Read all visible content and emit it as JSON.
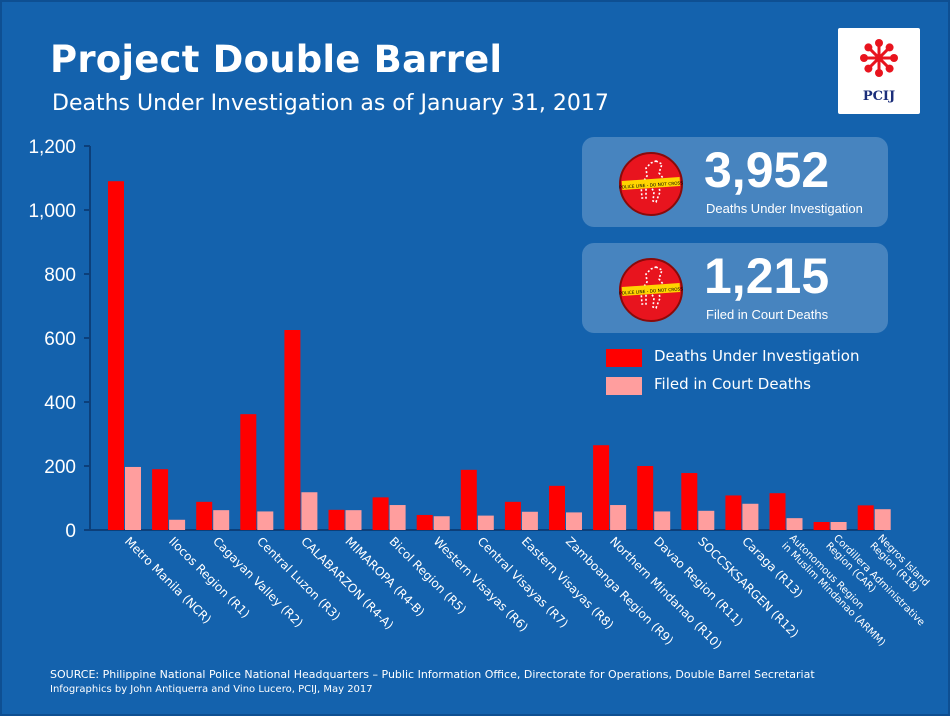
{
  "title": "Project Double Barrel",
  "subtitle": "Deaths Under Investigation as of January 31, 2017",
  "logo_text": "PCIJ",
  "icon_tape_text": "POLICE LINE - DO NOT CROSS",
  "stats": [
    {
      "number": "3,952",
      "label": "Deaths Under Investigation"
    },
    {
      "number": "1,215",
      "label": "Filed in Court Deaths"
    }
  ],
  "legend": [
    {
      "label": "Deaths Under Investigation",
      "color": "#ff0000"
    },
    {
      "label": "Filed in Court Deaths",
      "color": "#ff9e9e"
    }
  ],
  "source": "SOURCE: Philippine National Police National Headquarters – Public Information Office, Directorate for Operations, Double Barrel Secretariat",
  "credit": "Infographics by John Antiquerra and Vino Lucero, PCIJ, May 2017",
  "colors": {
    "background": "#1462ad",
    "series1": "#ff0000",
    "series2": "#ff9e9e",
    "axis": "#0c3f7a"
  },
  "chart_data": {
    "type": "bar",
    "title": "Project Double Barrel",
    "ylim": [
      0,
      1200
    ],
    "yticks": [
      0,
      200,
      400,
      600,
      800,
      1000,
      1200
    ],
    "ytick_labels": [
      "0",
      "200",
      "400",
      "600",
      "800",
      "1,000",
      "1,200"
    ],
    "grid": false,
    "legend_position": "right",
    "categories": [
      "Metro Manila (NCR)",
      "Ilocos Region (R1)",
      "Cagayan Valley (R2)",
      "Central Luzon (R3)",
      "CALABARZON (R4-A)",
      "MIMAROPA (R4-B)",
      "Bicol Region (R5)",
      "Western Visayas (R6)",
      "Central Visayas (R7)",
      "Eastern Visayas (R8)",
      "Zamboanga Region (R9)",
      "Northern Mindanao (R10)",
      "Davao Region (R11)",
      "SOCCSKSARGEN (R12)",
      "Caraga (R13)",
      [
        "Autonomous Region",
        "in Muslim Mindanao (ARMM)"
      ],
      [
        "Cordillera Administrative",
        "Region (CAR)"
      ],
      [
        "Negros Island",
        "Region (R18)"
      ]
    ],
    "series": [
      {
        "name": "Deaths Under Investigation",
        "values": [
          1090,
          190,
          88,
          362,
          625,
          63,
          102,
          47,
          188,
          88,
          138,
          265,
          200,
          178,
          108,
          115,
          25,
          77
        ]
      },
      {
        "name": "Filed in Court Deaths",
        "values": [
          197,
          32,
          62,
          58,
          118,
          62,
          78,
          43,
          45,
          57,
          55,
          78,
          58,
          60,
          82,
          37,
          25,
          65
        ]
      }
    ]
  }
}
